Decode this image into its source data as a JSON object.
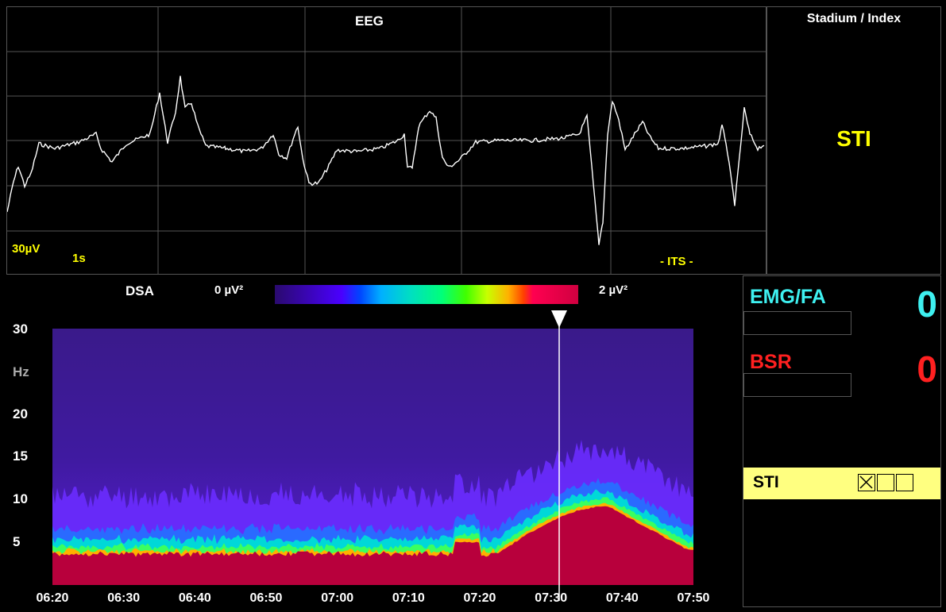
{
  "eeg": {
    "title": "EEG",
    "amplitude_scale": "30µV",
    "time_scale": "1s",
    "mode": "- ITS -"
  },
  "stadium": {
    "title": "Stadium / Index",
    "value": "STI"
  },
  "dsa": {
    "title": "DSA",
    "colorbar_min": "0 µV²",
    "colorbar_max": "2 µV²",
    "y_ticks": [
      "30",
      "Hz",
      "20",
      "15",
      "10",
      "5"
    ],
    "x_ticks": [
      "06:20",
      "06:30",
      "06:40",
      "06:50",
      "07:00",
      "07:10",
      "07:20",
      "07:30",
      "07:40",
      "07:50"
    ],
    "cursor_time": "07:31"
  },
  "emg": {
    "label": "EMG/FA",
    "value": "0"
  },
  "bsr": {
    "label": "BSR",
    "value": "0"
  },
  "sti_box": {
    "label": "STI",
    "checkboxes": [
      true,
      false,
      false
    ]
  },
  "colors": {
    "emg": "#3ef0f0",
    "bsr": "#ff2020",
    "stadium": "#ffff00",
    "sti_box_bg": "#ffff80",
    "dsa_bottom": "#b8003c",
    "dsa_top": "#3a1a8a"
  }
}
